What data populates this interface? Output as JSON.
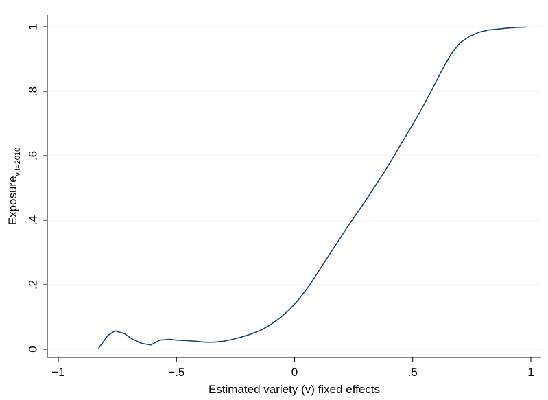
{
  "chart_data": {
    "type": "line",
    "title": "",
    "xlabel": "Estimated variety (v) fixed effects",
    "ylabel_main": "Exposure",
    "ylabel_sub": "v,t=2010",
    "xlim": [
      -1,
      1
    ],
    "ylim": [
      0,
      1
    ],
    "x_ticks": [
      -1,
      -0.5,
      0,
      0.5,
      1
    ],
    "x_tick_labels": [
      "−1",
      "−.5",
      "0",
      ".5",
      "1"
    ],
    "y_ticks": [
      0,
      0.2,
      0.4,
      0.6,
      0.8,
      1
    ],
    "y_tick_labels": [
      "0",
      ".2",
      ".4",
      ".6",
      ".8",
      "1"
    ],
    "grid": true,
    "line_color": "#1a476f",
    "series": [
      {
        "x": [
          -0.83,
          -0.79,
          -0.76,
          -0.72,
          -0.69,
          -0.65,
          -0.61,
          -0.57,
          -0.53,
          -0.5,
          -0.46,
          -0.42,
          -0.38,
          -0.34,
          -0.3,
          -0.26,
          -0.22,
          -0.18,
          -0.14,
          -0.1,
          -0.06,
          -0.02,
          0.02,
          0.06,
          0.1,
          0.14,
          0.18,
          0.22,
          0.26,
          0.3,
          0.34,
          0.38,
          0.42,
          0.46,
          0.5,
          0.54,
          0.58,
          0.62,
          0.66,
          0.7,
          0.74,
          0.78,
          0.82,
          0.86,
          0.9,
          0.94,
          0.98
        ],
        "y": [
          0.003,
          0.043,
          0.057,
          0.048,
          0.033,
          0.019,
          0.013,
          0.028,
          0.031,
          0.028,
          0.027,
          0.025,
          0.022,
          0.022,
          0.025,
          0.031,
          0.039,
          0.048,
          0.06,
          0.077,
          0.098,
          0.124,
          0.157,
          0.195,
          0.24,
          0.285,
          0.33,
          0.375,
          0.418,
          0.46,
          0.505,
          0.55,
          0.598,
          0.648,
          0.697,
          0.748,
          0.803,
          0.86,
          0.913,
          0.95,
          0.97,
          0.983,
          0.99,
          0.993,
          0.996,
          0.998,
          0.999
        ]
      }
    ]
  }
}
